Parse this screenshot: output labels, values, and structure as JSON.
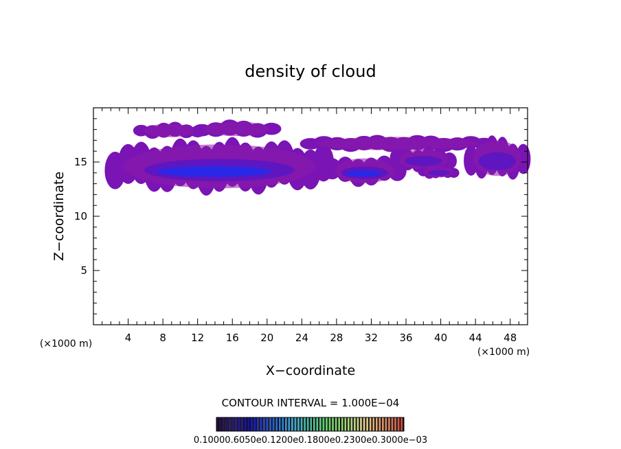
{
  "chart_data": {
    "type": "heatmap",
    "title": "density of cloud",
    "xlabel": "X−coordinate",
    "ylabel": "Z−coordinate",
    "x_units_left": "(×1000 m)",
    "x_units_right": "(×1000 m)",
    "xlim": [
      0,
      50
    ],
    "ylim": [
      0,
      20
    ],
    "x_ticks": [
      "4",
      "8",
      "12",
      "16",
      "20",
      "24",
      "28",
      "32",
      "36",
      "40",
      "44",
      "48"
    ],
    "y_ticks": [
      "5",
      "10",
      "15"
    ],
    "contour_interval_label": "CONTOUR INTERVAL = 1.000E−04",
    "colorbar_labels_text": "0.10000.6050e0.1200e0.1800e0.2300e0.3000e−03",
    "colorbar_levels": [
      0.0001,
      0.0006,
      0.0012,
      0.0018,
      0.0023,
      0.003
    ],
    "colorbar_colors": [
      "#2a0a4a",
      "#1515c8",
      "#2fa5e0",
      "#5fd85f",
      "#e5d28c",
      "#d84a3a"
    ],
    "fill_colors": {
      "outer": "#7a14b4",
      "mid": "#5a16c2",
      "core": "#2a28e6",
      "edge": "#8c1aa8"
    },
    "cloud_regions": [
      {
        "x_range": [
          5.5,
          12
        ],
        "z_range": [
          17.2,
          18.6
        ],
        "max_density_level": 1
      },
      {
        "x_range": [
          12.5,
          20.5
        ],
        "z_range": [
          17.3,
          18.8
        ],
        "max_density_level": 1
      },
      {
        "x_range": [
          2.5,
          26.5
        ],
        "z_range": [
          12.3,
          16.9
        ],
        "max_density_level": 3
      },
      {
        "x_range": [
          25,
          45
        ],
        "z_range": [
          16,
          17.4
        ],
        "max_density_level": 1
      },
      {
        "x_range": [
          27.5,
          35
        ],
        "z_range": [
          12.9,
          15.5
        ],
        "max_density_level": 3
      },
      {
        "x_range": [
          35,
          41
        ],
        "z_range": [
          14.2,
          16.3
        ],
        "max_density_level": 2
      },
      {
        "x_range": [
          38,
          41.5
        ],
        "z_range": [
          13.5,
          14.7
        ],
        "max_density_level": 2
      },
      {
        "x_range": [
          43.5,
          49.5
        ],
        "z_range": [
          13.5,
          17.2
        ],
        "max_density_level": 2
      }
    ]
  }
}
